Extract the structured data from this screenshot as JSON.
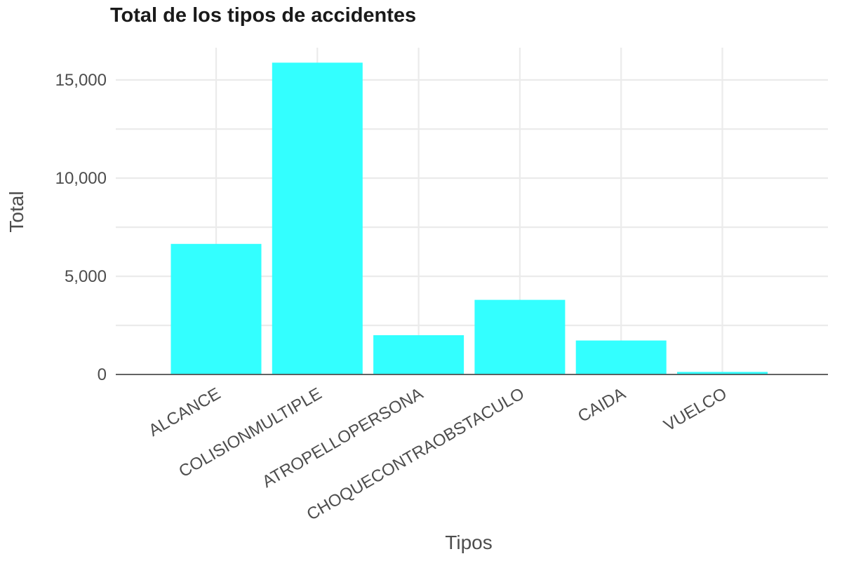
{
  "chart_data": {
    "type": "bar",
    "title": "Total de los tipos de accidentes",
    "xlabel": "Tipos",
    "ylabel": "Total",
    "categories": [
      "ALCANCE",
      "COLISIONMULTIPLE",
      "ATROPELLOPERSONA",
      "CHOQUECONTRAOBSTACULO",
      "CAIDA",
      "VUELCO"
    ],
    "values": [
      6650,
      15880,
      2000,
      3800,
      1730,
      130
    ],
    "ylim": [
      0,
      16500
    ],
    "yticks": [
      0,
      5000,
      10000,
      15000
    ],
    "ytick_labels": [
      "0",
      "5,000",
      "10,000",
      "15,000"
    ],
    "grid": true,
    "bar_color": "#33ffff",
    "tick_label_rotation_deg": 30
  }
}
